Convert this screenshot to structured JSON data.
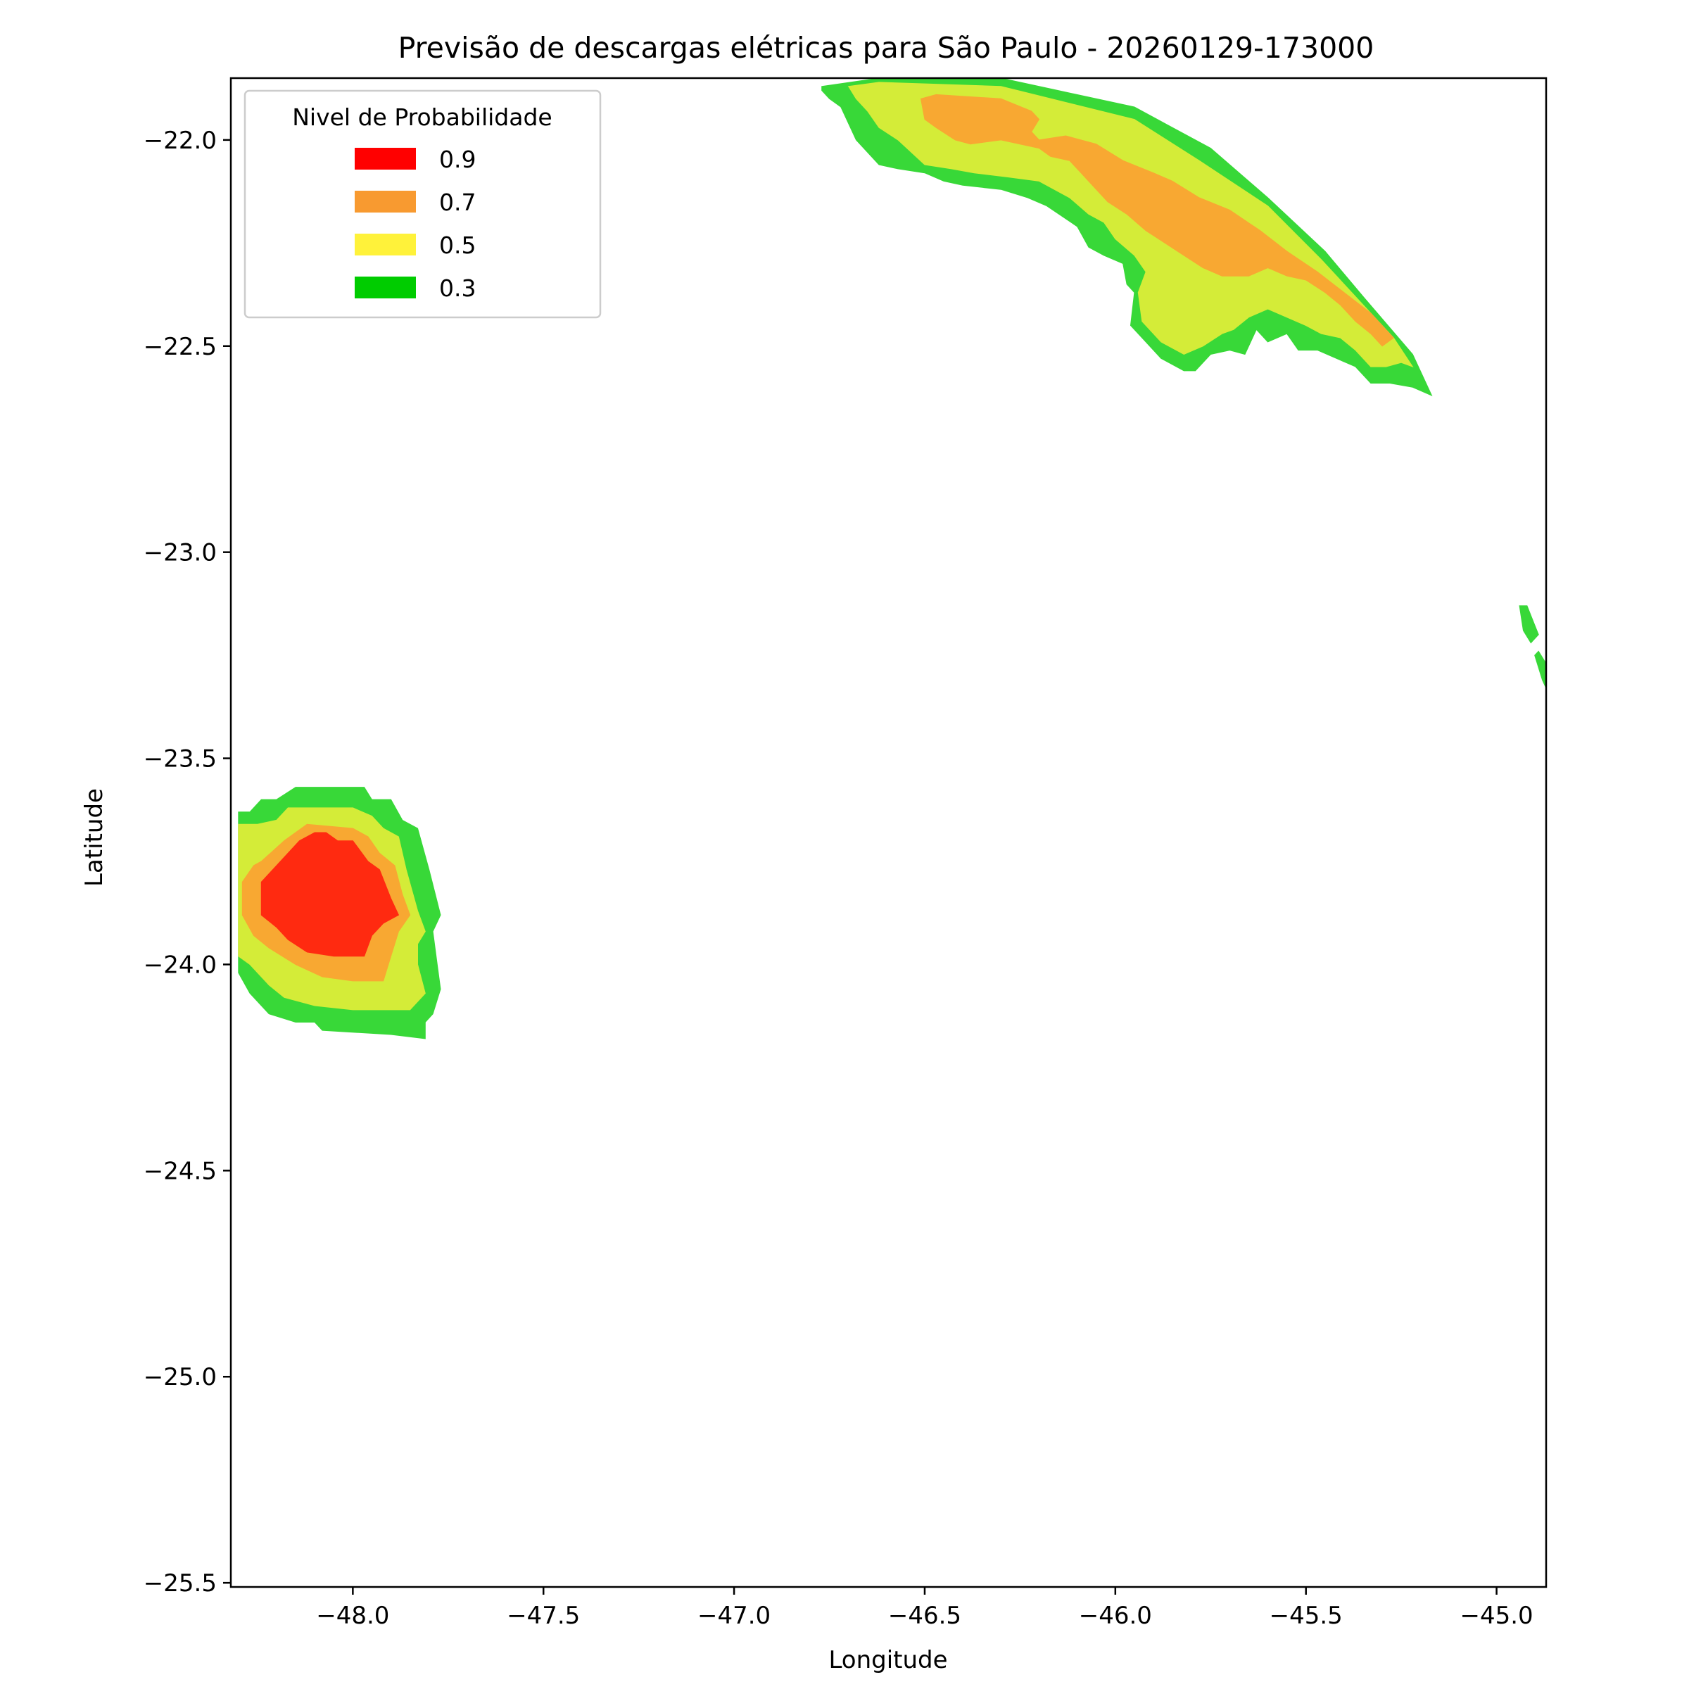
{
  "chart_data": {
    "type": "contour",
    "title": "Previsão de descargas elétricas para São Paulo - 20260129-173000",
    "xlabel": "Longitude",
    "ylabel": "Latitude",
    "xlim": [
      -48.32,
      -44.87
    ],
    "ylim": [
      -25.51,
      -21.85
    ],
    "x_ticks": [
      -48.0,
      -47.5,
      -47.0,
      -46.5,
      -46.0,
      -45.5,
      -45.0
    ],
    "x_tick_labels": [
      "−48.0",
      "−47.5",
      "−47.0",
      "−46.5",
      "−46.0",
      "−45.5",
      "−45.0"
    ],
    "y_ticks": [
      -22.0,
      -22.5,
      -23.0,
      -23.5,
      -24.0,
      -24.5,
      -25.0,
      -25.5
    ],
    "y_tick_labels": [
      "−22.0",
      "−22.5",
      "−23.0",
      "−23.5",
      "−24.0",
      "−24.5",
      "−25.0",
      "−25.5"
    ],
    "grid": false,
    "legend": {
      "title": "Nivel de Probabilidade",
      "placement": "upper-left",
      "entries": [
        {
          "label": "0.9",
          "color": "#ff0000"
        },
        {
          "label": "0.7",
          "color": "#f89a30"
        },
        {
          "label": "0.5",
          "color": "#fff23a"
        },
        {
          "label": "0.3",
          "color": "#00cc00"
        }
      ]
    },
    "contours": [
      {
        "region": "southwest-cell",
        "level": 0.3,
        "color": "#38d838",
        "polygon": [
          [
            -48.3,
            -23.63
          ],
          [
            -48.27,
            -23.63
          ],
          [
            -48.24,
            -23.6
          ],
          [
            -48.2,
            -23.6
          ],
          [
            -48.15,
            -23.57
          ],
          [
            -47.97,
            -23.57
          ],
          [
            -47.95,
            -23.6
          ],
          [
            -47.9,
            -23.6
          ],
          [
            -47.87,
            -23.65
          ],
          [
            -47.83,
            -23.67
          ],
          [
            -47.8,
            -23.77
          ],
          [
            -47.77,
            -23.88
          ],
          [
            -47.79,
            -23.92
          ],
          [
            -47.78,
            -23.99
          ],
          [
            -47.77,
            -24.06
          ],
          [
            -47.79,
            -24.12
          ],
          [
            -47.81,
            -24.14
          ],
          [
            -47.81,
            -24.18
          ],
          [
            -47.9,
            -24.17
          ],
          [
            -48.08,
            -24.16
          ],
          [
            -48.1,
            -24.14
          ],
          [
            -48.15,
            -24.14
          ],
          [
            -48.22,
            -24.12
          ],
          [
            -48.27,
            -24.07
          ],
          [
            -48.3,
            -24.02
          ],
          [
            -48.3,
            -23.63
          ]
        ]
      },
      {
        "region": "southwest-cell",
        "level": 0.5,
        "color": "#d4ec38",
        "polygon": [
          [
            -48.3,
            -23.66
          ],
          [
            -48.25,
            -23.66
          ],
          [
            -48.2,
            -23.65
          ],
          [
            -48.17,
            -23.62
          ],
          [
            -48.0,
            -23.62
          ],
          [
            -47.95,
            -23.64
          ],
          [
            -47.92,
            -23.67
          ],
          [
            -47.88,
            -23.69
          ],
          [
            -47.86,
            -23.77
          ],
          [
            -47.83,
            -23.87
          ],
          [
            -47.81,
            -23.92
          ],
          [
            -47.83,
            -23.95
          ],
          [
            -47.83,
            -24.0
          ],
          [
            -47.81,
            -24.07
          ],
          [
            -47.85,
            -24.11
          ],
          [
            -48.0,
            -24.11
          ],
          [
            -48.1,
            -24.1
          ],
          [
            -48.18,
            -24.08
          ],
          [
            -48.22,
            -24.05
          ],
          [
            -48.27,
            -24.0
          ],
          [
            -48.3,
            -23.98
          ],
          [
            -48.3,
            -23.66
          ]
        ]
      },
      {
        "region": "southwest-cell",
        "level": 0.7,
        "color": "#f8a832",
        "polygon": [
          [
            -48.24,
            -23.75
          ],
          [
            -48.18,
            -23.7
          ],
          [
            -48.12,
            -23.66
          ],
          [
            -48.0,
            -23.67
          ],
          [
            -47.96,
            -23.69
          ],
          [
            -47.93,
            -23.73
          ],
          [
            -47.89,
            -23.76
          ],
          [
            -47.87,
            -23.83
          ],
          [
            -47.85,
            -23.88
          ],
          [
            -47.88,
            -23.92
          ],
          [
            -47.9,
            -23.98
          ],
          [
            -47.92,
            -24.04
          ],
          [
            -48.0,
            -24.04
          ],
          [
            -48.08,
            -24.03
          ],
          [
            -48.15,
            -24.0
          ],
          [
            -48.22,
            -23.96
          ],
          [
            -48.26,
            -23.93
          ],
          [
            -48.29,
            -23.88
          ],
          [
            -48.29,
            -23.8
          ],
          [
            -48.26,
            -23.76
          ],
          [
            -48.24,
            -23.75
          ]
        ]
      },
      {
        "region": "southwest-cell",
        "level": 0.9,
        "color": "#ff2a10",
        "polygon": [
          [
            -48.24,
            -23.8
          ],
          [
            -48.14,
            -23.7
          ],
          [
            -48.1,
            -23.68
          ],
          [
            -48.07,
            -23.68
          ],
          [
            -48.04,
            -23.7
          ],
          [
            -48.0,
            -23.7
          ],
          [
            -47.96,
            -23.75
          ],
          [
            -47.93,
            -23.77
          ],
          [
            -47.9,
            -23.84
          ],
          [
            -47.88,
            -23.88
          ],
          [
            -47.92,
            -23.9
          ],
          [
            -47.95,
            -23.93
          ],
          [
            -47.97,
            -23.98
          ],
          [
            -48.05,
            -23.98
          ],
          [
            -48.12,
            -23.97
          ],
          [
            -48.17,
            -23.94
          ],
          [
            -48.2,
            -23.91
          ],
          [
            -48.24,
            -23.88
          ],
          [
            -48.24,
            -23.8
          ]
        ]
      },
      {
        "region": "northeast-band",
        "level": 0.3,
        "color": "#38d838",
        "polygon": [
          [
            -46.77,
            -21.87
          ],
          [
            -46.62,
            -21.85
          ],
          [
            -46.3,
            -21.85
          ],
          [
            -45.95,
            -21.92
          ],
          [
            -45.75,
            -22.02
          ],
          [
            -45.6,
            -22.14
          ],
          [
            -45.45,
            -22.27
          ],
          [
            -45.35,
            -22.38
          ],
          [
            -45.22,
            -22.52
          ],
          [
            -45.17,
            -22.62
          ],
          [
            -45.22,
            -22.6
          ],
          [
            -45.28,
            -22.59
          ],
          [
            -45.33,
            -22.59
          ],
          [
            -45.37,
            -22.55
          ],
          [
            -45.42,
            -22.53
          ],
          [
            -45.47,
            -22.51
          ],
          [
            -45.52,
            -22.51
          ],
          [
            -45.55,
            -22.47
          ],
          [
            -45.6,
            -22.49
          ],
          [
            -45.63,
            -22.46
          ],
          [
            -45.66,
            -22.52
          ],
          [
            -45.7,
            -22.51
          ],
          [
            -45.75,
            -22.52
          ],
          [
            -45.79,
            -22.56
          ],
          [
            -45.82,
            -22.56
          ],
          [
            -45.88,
            -22.53
          ],
          [
            -45.93,
            -22.48
          ],
          [
            -45.96,
            -22.45
          ],
          [
            -45.95,
            -22.37
          ],
          [
            -45.97,
            -22.35
          ],
          [
            -45.98,
            -22.3
          ],
          [
            -46.03,
            -22.28
          ],
          [
            -46.07,
            -22.26
          ],
          [
            -46.1,
            -22.21
          ],
          [
            -46.18,
            -22.16
          ],
          [
            -46.23,
            -22.14
          ],
          [
            -46.3,
            -22.12
          ],
          [
            -46.4,
            -22.11
          ],
          [
            -46.45,
            -22.1
          ],
          [
            -46.5,
            -22.08
          ],
          [
            -46.57,
            -22.07
          ],
          [
            -46.62,
            -22.06
          ],
          [
            -46.68,
            -22.0
          ],
          [
            -46.72,
            -21.92
          ],
          [
            -46.75,
            -21.9
          ],
          [
            -46.77,
            -21.88
          ],
          [
            -46.77,
            -21.87
          ]
        ]
      },
      {
        "region": "northeast-band",
        "level": 0.5,
        "color": "#d4ec38",
        "polygon": [
          [
            -46.7,
            -21.87
          ],
          [
            -46.62,
            -21.86
          ],
          [
            -46.3,
            -21.87
          ],
          [
            -45.95,
            -21.95
          ],
          [
            -45.78,
            -22.05
          ],
          [
            -45.6,
            -22.16
          ],
          [
            -45.46,
            -22.29
          ],
          [
            -45.35,
            -22.4
          ],
          [
            -45.27,
            -22.48
          ],
          [
            -45.22,
            -22.55
          ],
          [
            -45.25,
            -22.54
          ],
          [
            -45.29,
            -22.55
          ],
          [
            -45.33,
            -22.55
          ],
          [
            -45.37,
            -22.51
          ],
          [
            -45.41,
            -22.48
          ],
          [
            -45.46,
            -22.47
          ],
          [
            -45.5,
            -22.45
          ],
          [
            -45.55,
            -22.43
          ],
          [
            -45.6,
            -22.41
          ],
          [
            -45.65,
            -22.43
          ],
          [
            -45.69,
            -22.46
          ],
          [
            -45.72,
            -22.47
          ],
          [
            -45.77,
            -22.5
          ],
          [
            -45.82,
            -22.52
          ],
          [
            -45.88,
            -22.49
          ],
          [
            -45.93,
            -22.44
          ],
          [
            -45.94,
            -22.37
          ],
          [
            -45.92,
            -22.32
          ],
          [
            -45.95,
            -22.28
          ],
          [
            -46.0,
            -22.24
          ],
          [
            -46.03,
            -22.2
          ],
          [
            -46.07,
            -22.18
          ],
          [
            -46.12,
            -22.14
          ],
          [
            -46.2,
            -22.1
          ],
          [
            -46.28,
            -22.09
          ],
          [
            -46.37,
            -22.08
          ],
          [
            -46.43,
            -22.07
          ],
          [
            -46.5,
            -22.06
          ],
          [
            -46.57,
            -22.0
          ],
          [
            -46.62,
            -21.97
          ],
          [
            -46.65,
            -21.93
          ],
          [
            -46.68,
            -21.9
          ],
          [
            -46.7,
            -21.87
          ]
        ]
      },
      {
        "region": "northeast-band",
        "level": 0.7,
        "color": "#f8a832",
        "polygon": [
          [
            -46.51,
            -21.9
          ],
          [
            -46.47,
            -21.89
          ],
          [
            -46.3,
            -21.9
          ],
          [
            -46.22,
            -21.93
          ],
          [
            -46.2,
            -21.95
          ],
          [
            -46.22,
            -21.98
          ],
          [
            -46.2,
            -22.0
          ],
          [
            -46.13,
            -21.99
          ],
          [
            -46.05,
            -22.01
          ],
          [
            -45.98,
            -22.05
          ],
          [
            -45.9,
            -22.08
          ],
          [
            -45.85,
            -22.1
          ],
          [
            -45.78,
            -22.14
          ],
          [
            -45.7,
            -22.17
          ],
          [
            -45.62,
            -22.22
          ],
          [
            -45.55,
            -22.27
          ],
          [
            -45.47,
            -22.32
          ],
          [
            -45.4,
            -22.37
          ],
          [
            -45.33,
            -22.42
          ],
          [
            -45.27,
            -22.48
          ],
          [
            -45.3,
            -22.5
          ],
          [
            -45.33,
            -22.47
          ],
          [
            -45.37,
            -22.44
          ],
          [
            -45.41,
            -22.4
          ],
          [
            -45.45,
            -22.37
          ],
          [
            -45.5,
            -22.34
          ],
          [
            -45.55,
            -22.33
          ],
          [
            -45.6,
            -22.31
          ],
          [
            -45.65,
            -22.33
          ],
          [
            -45.72,
            -22.33
          ],
          [
            -45.77,
            -22.31
          ],
          [
            -45.82,
            -22.28
          ],
          [
            -45.87,
            -22.25
          ],
          [
            -45.92,
            -22.22
          ],
          [
            -45.97,
            -22.18
          ],
          [
            -46.02,
            -22.15
          ],
          [
            -46.05,
            -22.12
          ],
          [
            -46.09,
            -22.08
          ],
          [
            -46.12,
            -22.05
          ],
          [
            -46.17,
            -22.04
          ],
          [
            -46.2,
            -22.02
          ],
          [
            -46.25,
            -22.01
          ],
          [
            -46.3,
            -22.0
          ],
          [
            -46.38,
            -22.01
          ],
          [
            -46.42,
            -22.0
          ],
          [
            -46.47,
            -21.97
          ],
          [
            -46.5,
            -21.95
          ],
          [
            -46.51,
            -21.9
          ]
        ]
      },
      {
        "region": "east-edge",
        "level": 0.3,
        "color": "#38d838",
        "polygon": [
          [
            -44.94,
            -23.13
          ],
          [
            -44.92,
            -23.13
          ],
          [
            -44.89,
            -23.2
          ],
          [
            -44.91,
            -23.22
          ],
          [
            -44.93,
            -23.19
          ],
          [
            -44.94,
            -23.13
          ]
        ]
      },
      {
        "region": "east-edge",
        "level": 0.3,
        "color": "#38d838",
        "polygon": [
          [
            -44.9,
            -23.25
          ],
          [
            -44.88,
            -23.31
          ],
          [
            -44.87,
            -23.33
          ],
          [
            -44.87,
            -23.27
          ],
          [
            -44.89,
            -23.24
          ],
          [
            -44.9,
            -23.25
          ]
        ]
      }
    ]
  }
}
